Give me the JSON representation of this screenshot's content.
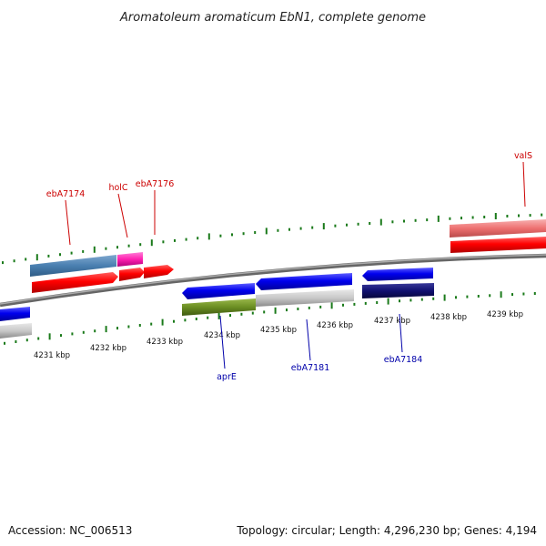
{
  "title": "Aromatoleum aromaticum EbN1, complete genome",
  "footer": {
    "accession": "Accession: NC_006513",
    "info": "Topology: circular; Length: 4,296,230 bp; Genes: 4,194"
  },
  "colors": {
    "backbone": "#888888",
    "tick": "#1a7a1a",
    "forward_label": "#cc0000",
    "reverse_label": "#0000aa"
  },
  "scale": {
    "labels": [
      "4231 kbp",
      "4232 kbp",
      "4233 kbp",
      "4234 kbp",
      "4235 kbp",
      "4236 kbp",
      "4237 kbp",
      "4238 kbp",
      "4239 kbp"
    ]
  },
  "forward_labels": [
    "ebA7174",
    "holC",
    "ebA7176",
    "valS"
  ],
  "reverse_labels": [
    "aprE",
    "ebA7181",
    "ebA7184"
  ]
}
